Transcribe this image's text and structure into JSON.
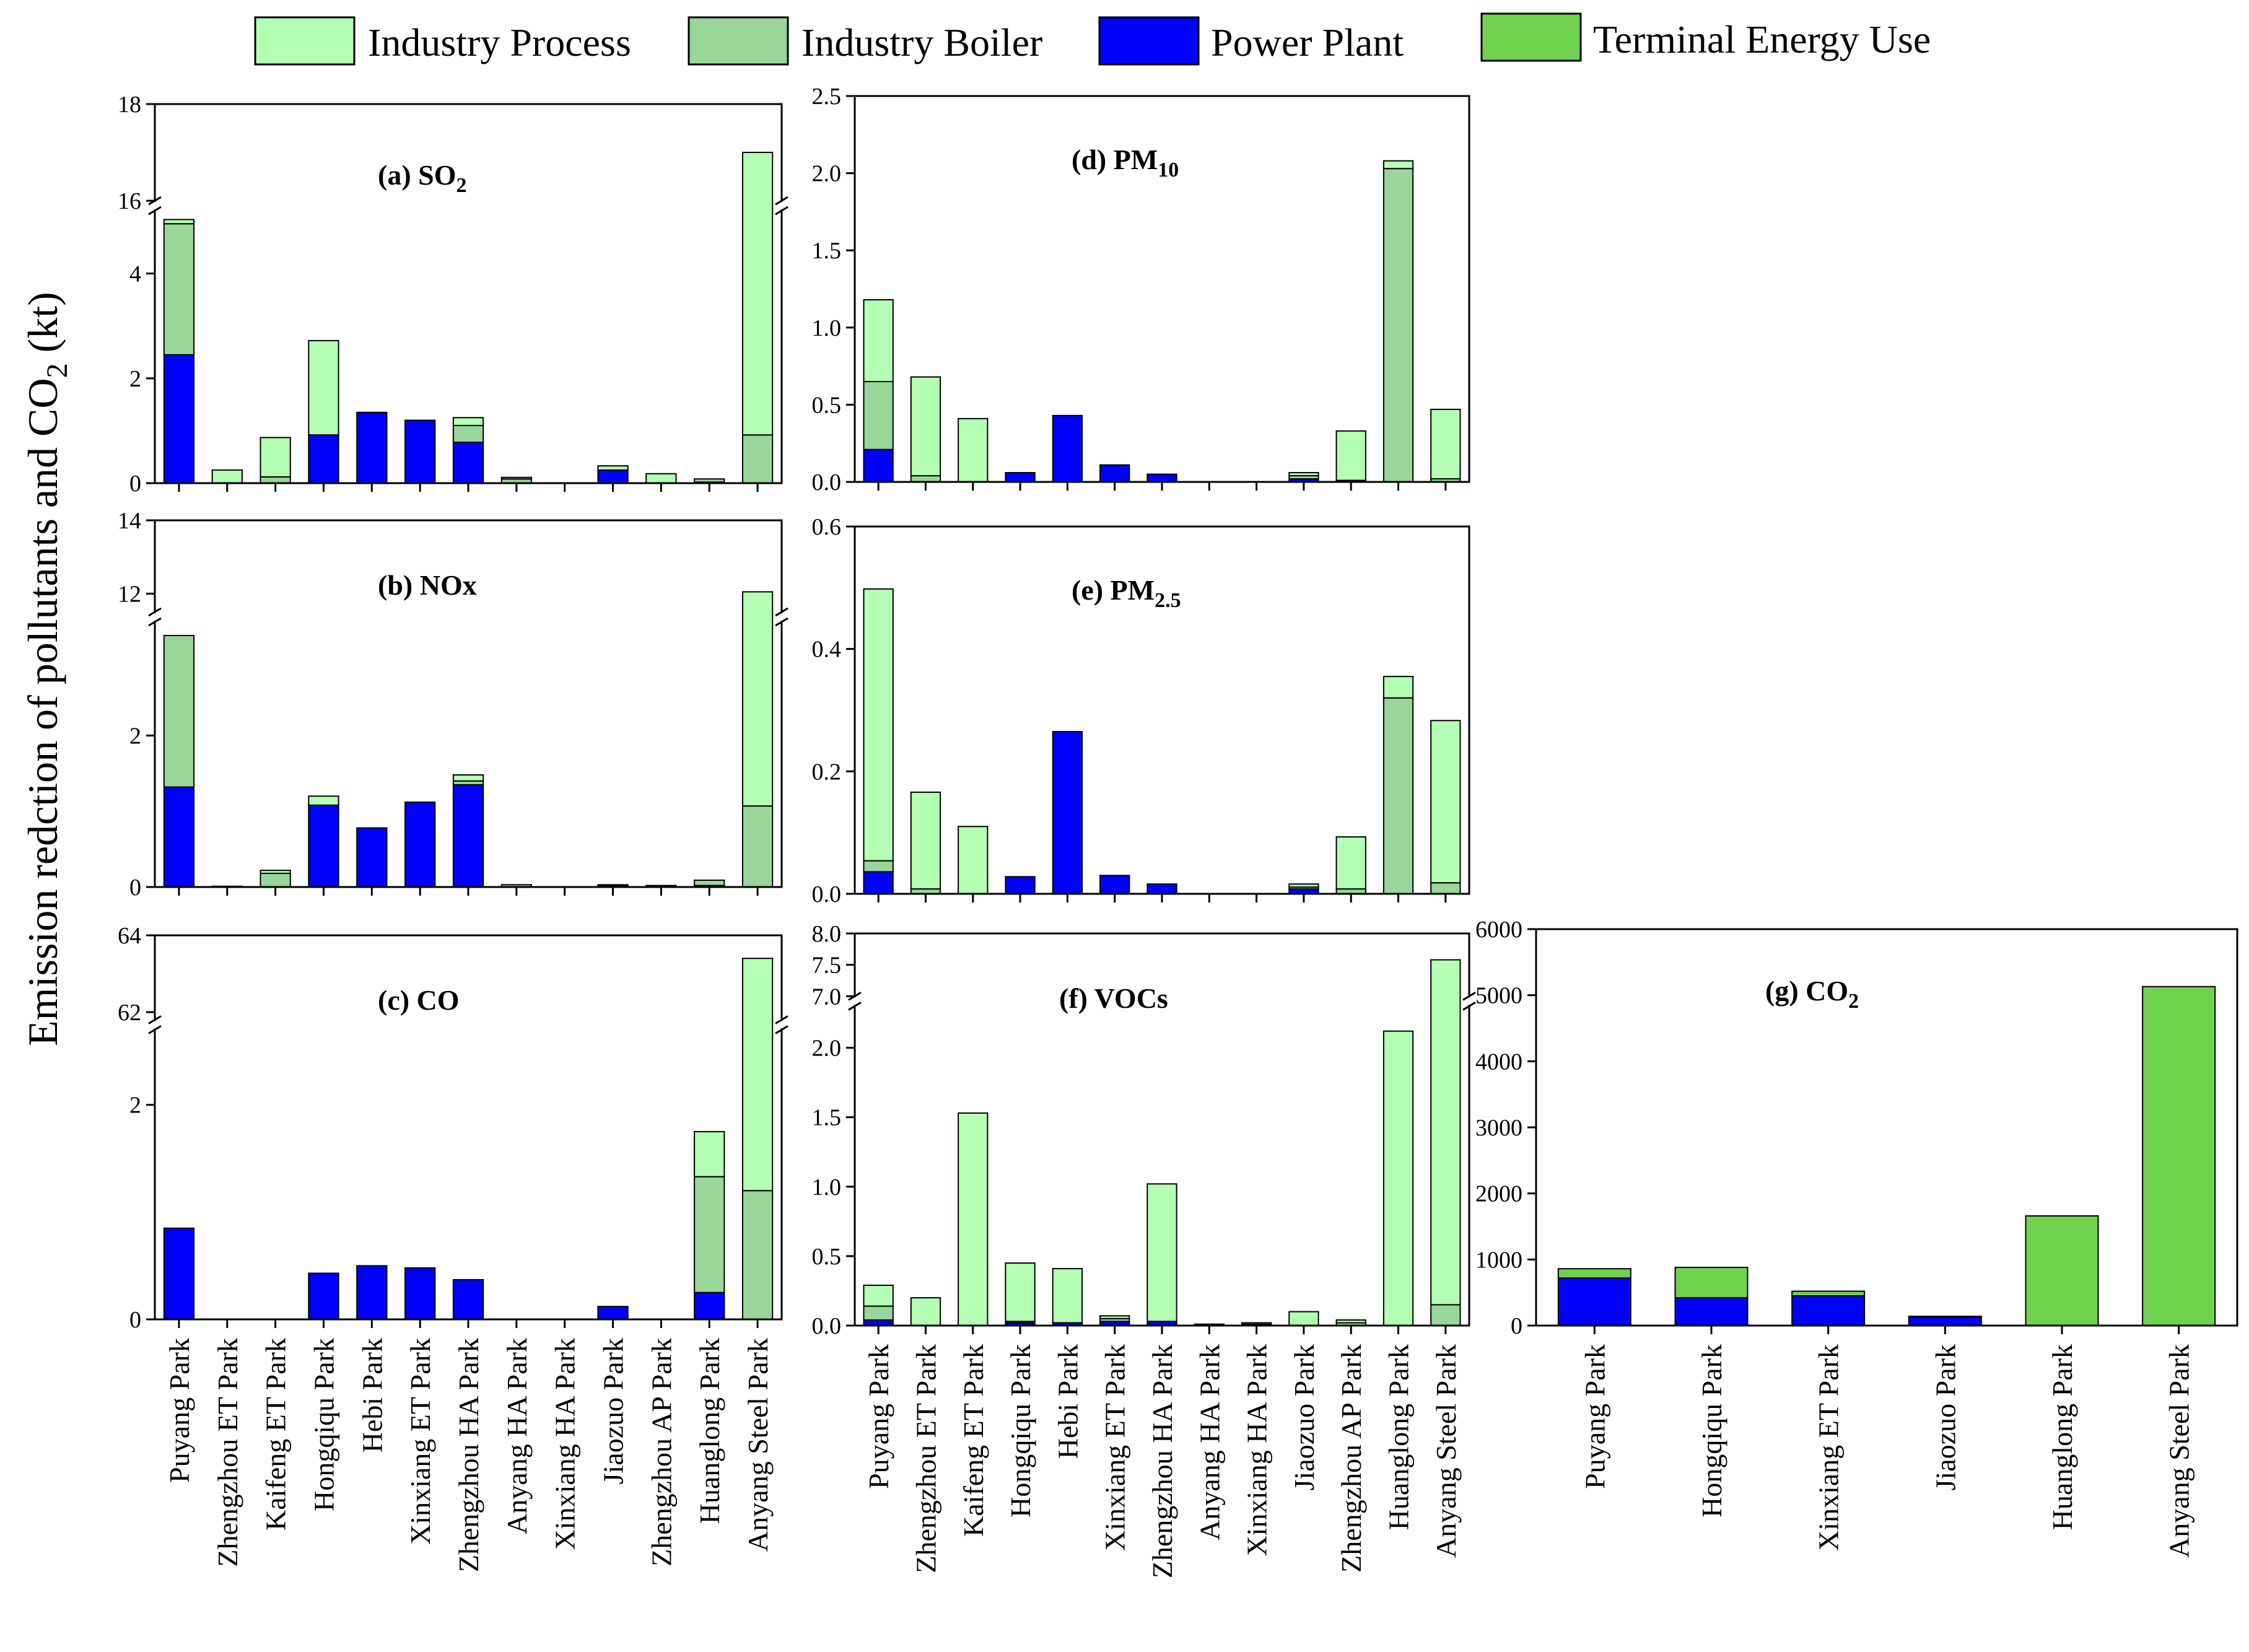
{
  "colors": {
    "industry_process": "#b3ffb3",
    "industry_boiler": "#99d699",
    "power_plant": "#0000ff",
    "terminal_energy_use": "#6fd24f"
  },
  "legend": {
    "items": [
      {
        "label": "Industry Process",
        "color": "#b3ffb3"
      },
      {
        "label": "Industry Boiler",
        "color": "#99d699"
      },
      {
        "label": "Power Plant",
        "color": "#0000ff"
      },
      {
        "label": "Terminal Energy Use",
        "color": "#6fd24f"
      }
    ]
  },
  "y_axis_label": {
    "main": "Emission redction of pollutants and CO",
    "sub": "2",
    "tail": " (kt)"
  },
  "chart_data": [
    {
      "id": "so2",
      "type": "bar",
      "stacked": true,
      "title_main": "(a) SO",
      "title_sub": "2",
      "categories": [
        "Puyang Park",
        "Zhengzhou ET Park",
        "Kaifeng ET Park",
        "Hongqiqu Park",
        "Hebi Park",
        "Xinxiang ET Park",
        "Zhengzhou HA Park",
        "Anyang HA Park",
        "Xinxiang HA Park",
        "Jiaozuo Park",
        "Zhengzhou AP Park",
        "Huanglong Park",
        "Anyang Steel Park"
      ],
      "series": [
        {
          "name": "Power Plant",
          "values": [
            2.45,
            0,
            0,
            0.92,
            1.35,
            1.2,
            0.78,
            0,
            0,
            0.25,
            0,
            0.02,
            0
          ]
        },
        {
          "name": "Industry Boiler",
          "values": [
            2.5,
            0,
            0.12,
            0,
            0,
            0,
            0.32,
            0.08,
            0,
            0,
            0,
            0.06,
            0.92
          ]
        },
        {
          "name": "Industry Process",
          "values": [
            0.08,
            0.25,
            0.75,
            1.8,
            0,
            0,
            0.15,
            0.03,
            0,
            0.08,
            0.18,
            0,
            16.08
          ]
        }
      ],
      "ylim": [
        0,
        18
      ],
      "axis_break": {
        "from": 5.2,
        "to": 16
      },
      "ticks_lower": [
        0,
        2,
        4
      ],
      "ticks_upper": [
        16,
        18
      ]
    },
    {
      "id": "nox",
      "type": "bar",
      "stacked": true,
      "title_main": "(b) NOx",
      "title_sub": "",
      "categories": [
        "Puyang Park",
        "Zhengzhou ET Park",
        "Kaifeng ET Park",
        "Hongqiqu Park",
        "Hebi Park",
        "Xinxiang ET Park",
        "Zhengzhou HA Park",
        "Anyang HA Park",
        "Xinxiang HA Park",
        "Jiaozuo Park",
        "Zhengzhou AP Park",
        "Huanglong Park",
        "Anyang Steel Park"
      ],
      "series": [
        {
          "name": "Power Plant",
          "values": [
            1.32,
            0.01,
            0,
            1.08,
            0.78,
            1.12,
            1.35,
            0,
            0,
            0.02,
            0,
            0.02,
            0
          ]
        },
        {
          "name": "Industry Boiler",
          "values": [
            2.0,
            0,
            0.18,
            0,
            0,
            0,
            0.05,
            0.03,
            0,
            0,
            0.02,
            0.07,
            1.07
          ]
        },
        {
          "name": "Industry Process",
          "values": [
            0,
            0,
            0.04,
            0.12,
            0,
            0,
            0.08,
            0,
            0,
            0.01,
            0,
            0,
            10.98
          ]
        }
      ],
      "ylim": [
        0,
        14
      ],
      "axis_break": {
        "from": 3.5,
        "to": 11.5
      },
      "ticks_lower": [
        0,
        2
      ],
      "ticks_upper": [
        12,
        14
      ]
    },
    {
      "id": "co",
      "type": "bar",
      "stacked": true,
      "title_main": "(c) CO",
      "title_sub": "",
      "categories": [
        "Puyang Park",
        "Zhengzhou ET Park",
        "Kaifeng ET Park",
        "Hongqiqu Park",
        "Hebi Park",
        "Xinxiang ET Park",
        "Zhengzhou HA Park",
        "Anyang HA Park",
        "Xinxiang HA Park",
        "Jiaozuo Park",
        "Zhengzhou AP Park",
        "Huanglong Park",
        "Anyang Steel Park"
      ],
      "series": [
        {
          "name": "Power Plant",
          "values": [
            0.85,
            0,
            0,
            0.43,
            0.5,
            0.48,
            0.37,
            0,
            0,
            0.12,
            0,
            0.25,
            0
          ]
        },
        {
          "name": "Industry Boiler",
          "values": [
            0,
            0,
            0,
            0,
            0,
            0,
            0,
            0,
            0,
            0,
            0,
            1.08,
            1.2
          ]
        },
        {
          "name": "Industry Process",
          "values": [
            0,
            0,
            0,
            0,
            0,
            0,
            0,
            0,
            0,
            0,
            0,
            0.42,
            62.2
          ]
        }
      ],
      "ylim": [
        0,
        64
      ],
      "axis_break": {
        "from": 2.7,
        "to": 61.8
      },
      "ticks_lower": [
        0,
        2
      ],
      "ticks_upper": [
        62,
        64
      ]
    },
    {
      "id": "pm10",
      "type": "bar",
      "stacked": true,
      "title_main": "(d) PM",
      "title_sub": "10",
      "categories": [
        "Puyang Park",
        "Zhengzhou ET Park",
        "Kaifeng ET Park",
        "Hongqiqu Park",
        "Hebi Park",
        "Xinxiang ET Park",
        "Zhengzhou HA Park",
        "Anyang HA Park",
        "Xinxiang HA Park",
        "Jiaozuo Park",
        "Zhengzhou AP Park",
        "Huanglong Park",
        "Anyang Steel Park"
      ],
      "series": [
        {
          "name": "Power Plant",
          "values": [
            0.21,
            0,
            0,
            0.06,
            0.43,
            0.11,
            0.05,
            0,
            0,
            0.02,
            0,
            0,
            0
          ]
        },
        {
          "name": "Industry Boiler",
          "values": [
            0.44,
            0.04,
            0,
            0,
            0,
            0,
            0,
            0,
            0,
            0.02,
            0.01,
            2.03,
            0.02
          ]
        },
        {
          "name": "Industry Process",
          "values": [
            0.53,
            0.64,
            0.41,
            0,
            0,
            0,
            0,
            0,
            0,
            0.02,
            0.32,
            0.05,
            0.45
          ]
        }
      ],
      "ylim": [
        0,
        2.5
      ],
      "ticks": [
        0.0,
        0.5,
        1.0,
        1.5,
        2.0,
        2.5
      ]
    },
    {
      "id": "pm25",
      "type": "bar",
      "stacked": true,
      "title_main": "(e) PM",
      "title_sub": "2.5",
      "categories": [
        "Puyang Park",
        "Zhengzhou ET Park",
        "Kaifeng ET Park",
        "Hongqiqu Park",
        "Hebi Park",
        "Xinxiang ET Park",
        "Zhengzhou HA Park",
        "Anyang HA Park",
        "Xinxiang HA Park",
        "Jiaozuo Park",
        "Zhengzhou AP Park",
        "Huanglong Park",
        "Anyang Steel Park"
      ],
      "series": [
        {
          "name": "Power Plant",
          "values": [
            0.036,
            0,
            0,
            0.028,
            0.265,
            0.03,
            0.016,
            0,
            0,
            0.008,
            0,
            0,
            0
          ]
        },
        {
          "name": "Industry Boiler",
          "values": [
            0.018,
            0.008,
            0,
            0,
            0,
            0,
            0,
            0,
            0,
            0.003,
            0.008,
            0.32,
            0.018
          ]
        },
        {
          "name": "Industry Process",
          "values": [
            0.444,
            0.158,
            0.11,
            0,
            0,
            0,
            0,
            0,
            0,
            0.005,
            0.085,
            0.035,
            0.265
          ]
        }
      ],
      "ylim": [
        0,
        0.6
      ],
      "ticks": [
        0.0,
        0.2,
        0.4,
        0.6
      ]
    },
    {
      "id": "vocs",
      "type": "bar",
      "stacked": true,
      "title_main": "(f) VOCs",
      "title_sub": "",
      "categories": [
        "Puyang Park",
        "Zhengzhou ET Park",
        "Kaifeng ET Park",
        "Hongqiqu Park",
        "Hebi Park",
        "Xinxiang ET Park",
        "Zhengzhou HA Park",
        "Anyang HA Park",
        "Xinxiang HA Park",
        "Jiaozuo Park",
        "Zhengzhou AP Park",
        "Huanglong Park",
        "Anyang Steel Park"
      ],
      "series": [
        {
          "name": "Power Plant",
          "values": [
            0.04,
            0,
            0,
            0.02,
            0.02,
            0.03,
            0.03,
            0,
            0,
            0,
            0,
            0,
            0
          ]
        },
        {
          "name": "Industry Boiler",
          "values": [
            0.1,
            0,
            0,
            0.01,
            0,
            0.02,
            0,
            0.01,
            0.01,
            0,
            0.02,
            0,
            0.15
          ]
        },
        {
          "name": "Industry Process",
          "values": [
            0.15,
            0.2,
            1.53,
            0.42,
            0.39,
            0.02,
            0.99,
            0,
            0.01,
            0.1,
            0.02,
            2.12,
            7.43
          ]
        }
      ],
      "ylim": [
        0,
        8.0
      ],
      "axis_break": {
        "from": 2.3,
        "to": 7.0
      },
      "ticks_lower": [
        0.0,
        0.5,
        1.0,
        1.5,
        2.0
      ],
      "ticks_upper": [
        7.0,
        7.5,
        8.0
      ]
    },
    {
      "id": "co2",
      "type": "bar",
      "stacked": true,
      "title_main": "(g) CO",
      "title_sub": "2",
      "categories": [
        "Puyang Park",
        "Hongqiqu Park",
        "Xinxiang ET Park",
        "Jiaozuo Park",
        "Huanglong Park",
        "Anyang Steel Park"
      ],
      "series": [
        {
          "name": "Power Plant",
          "values": [
            720,
            420,
            450,
            130,
            0,
            0
          ]
        },
        {
          "name": "Terminal Energy Use",
          "values": [
            140,
            460,
            70,
            10,
            1660,
            5130
          ]
        }
      ],
      "ylim": [
        0,
        6000
      ],
      "ticks": [
        0,
        1000,
        2000,
        3000,
        4000,
        5000,
        6000
      ]
    }
  ]
}
